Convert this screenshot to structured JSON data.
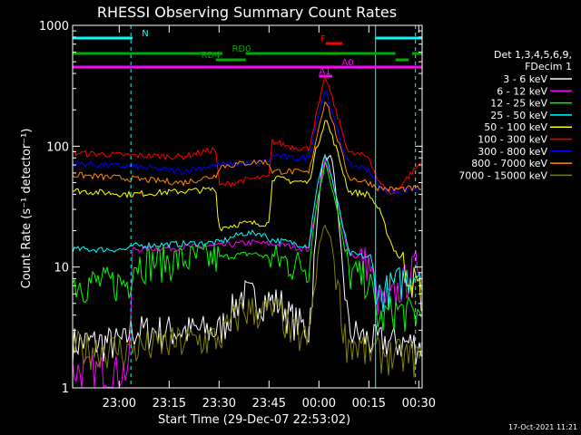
{
  "chart_data": {
    "type": "line",
    "title": "RHESSI Observing Summary Count Rates",
    "xlabel": "Start Time (29-Dec-07 22:53:02)",
    "ylabel": "Count Rate (s⁻¹ detector⁻¹)",
    "yscale": "log",
    "ylim": [
      1,
      1000
    ],
    "xlim_minutes": [
      -7,
      98
    ],
    "x_ticks": [
      {
        "m": 7,
        "label": "23:00"
      },
      {
        "m": 22,
        "label": "23:15"
      },
      {
        "m": 37,
        "label": "23:30"
      },
      {
        "m": 52,
        "label": "23:45"
      },
      {
        "m": 67,
        "label": "00:00"
      },
      {
        "m": 82,
        "label": "00:15"
      },
      {
        "m": 97,
        "label": "00:30"
      }
    ],
    "y_ticks": [
      {
        "v": 1,
        "label": "1"
      },
      {
        "v": 10,
        "label": "10"
      },
      {
        "v": 100,
        "label": "100"
      },
      {
        "v": 1000,
        "label": "1000"
      }
    ],
    "legend_header": [
      "Det 1,3,4,5,6,9,",
      "FDecim 1"
    ],
    "series": [
      {
        "name": "3 - 6 keV",
        "color": "#ffffff",
        "points": [
          [
            -7,
            2.4
          ],
          [
            9,
            2.4
          ],
          [
            10,
            3
          ],
          [
            18,
            3
          ],
          [
            30,
            3
          ],
          [
            37,
            3
          ],
          [
            44,
            6
          ],
          [
            56,
            5
          ],
          [
            58,
            4
          ],
          [
            64,
            3
          ],
          [
            68,
            80
          ],
          [
            71,
            80
          ],
          [
            76,
            3
          ],
          [
            82,
            2.5
          ],
          [
            98,
            2.3
          ]
        ]
      },
      {
        "name": "6 - 12 keV",
        "color": "#ff00ff",
        "points": [
          [
            -7,
            1.4
          ],
          [
            10,
            1.4
          ],
          [
            11,
            14
          ],
          [
            37,
            15
          ],
          [
            47,
            16
          ],
          [
            58,
            15
          ],
          [
            64,
            14
          ],
          [
            66,
            30
          ],
          [
            69,
            80
          ],
          [
            72,
            40
          ],
          [
            76,
            13
          ],
          [
            82,
            11
          ],
          [
            85,
            5
          ],
          [
            89,
            5.6
          ],
          [
            98,
            12
          ]
        ]
      },
      {
        "name": "12 - 25 keV",
        "color": "#00ff00",
        "points": [
          [
            -7,
            7.5
          ],
          [
            10,
            7.5
          ],
          [
            11,
            11
          ],
          [
            37,
            12
          ],
          [
            47,
            13
          ],
          [
            58,
            11
          ],
          [
            64,
            10
          ],
          [
            66,
            30
          ],
          [
            69,
            75
          ],
          [
            72,
            35
          ],
          [
            76,
            9
          ],
          [
            82,
            8
          ],
          [
            85,
            3.5
          ],
          [
            89,
            4.5
          ],
          [
            98,
            4
          ]
        ]
      },
      {
        "name": "25 - 50 keV",
        "color": "#00ffff",
        "points": [
          [
            -7,
            14
          ],
          [
            10,
            14
          ],
          [
            11,
            15
          ],
          [
            37,
            16
          ],
          [
            44,
            19
          ],
          [
            50,
            19
          ],
          [
            52,
            17
          ],
          [
            58,
            16
          ],
          [
            64,
            15
          ],
          [
            66,
            40
          ],
          [
            69,
            90
          ],
          [
            72,
            40
          ],
          [
            76,
            13
          ],
          [
            82,
            12
          ],
          [
            85,
            6
          ],
          [
            89,
            7
          ],
          [
            98,
            10
          ]
        ]
      },
      {
        "name": "50 - 100 keV",
        "color": "#ffff00",
        "points": [
          [
            -7,
            43
          ],
          [
            10,
            40
          ],
          [
            36,
            44
          ],
          [
            37,
            21
          ],
          [
            44,
            23
          ],
          [
            52,
            23
          ],
          [
            53,
            55
          ],
          [
            58,
            52
          ],
          [
            64,
            50
          ],
          [
            66,
            90
          ],
          [
            69,
            170
          ],
          [
            72,
            100
          ],
          [
            76,
            42
          ],
          [
            82,
            40
          ],
          [
            85,
            30
          ],
          [
            89,
            15
          ],
          [
            98,
            6
          ]
        ]
      },
      {
        "name": "100 - 300 keV",
        "color": "#ff0000",
        "points": [
          [
            -7,
            88
          ],
          [
            10,
            84
          ],
          [
            26,
            82
          ],
          [
            36,
            95
          ],
          [
            37,
            47
          ],
          [
            44,
            52
          ],
          [
            50,
            55
          ],
          [
            52,
            55
          ],
          [
            53,
            110
          ],
          [
            58,
            100
          ],
          [
            64,
            95
          ],
          [
            66,
            170
          ],
          [
            69,
            380
          ],
          [
            72,
            200
          ],
          [
            76,
            88
          ],
          [
            82,
            82
          ],
          [
            85,
            50
          ],
          [
            89,
            40
          ],
          [
            98,
            75
          ]
        ]
      },
      {
        "name": "300 - 800 keV",
        "color": "#0000ff",
        "points": [
          [
            -7,
            72
          ],
          [
            10,
            68
          ],
          [
            26,
            62
          ],
          [
            36,
            70
          ],
          [
            37,
            70
          ],
          [
            44,
            72
          ],
          [
            52,
            75
          ],
          [
            53,
            85
          ],
          [
            58,
            80
          ],
          [
            64,
            80
          ],
          [
            66,
            150
          ],
          [
            69,
            300
          ],
          [
            72,
            150
          ],
          [
            76,
            70
          ],
          [
            82,
            65
          ],
          [
            85,
            45
          ],
          [
            89,
            42
          ],
          [
            98,
            45
          ]
        ]
      },
      {
        "name": "800 - 7000 keV",
        "color": "#ff8800",
        "points": [
          [
            -7,
            58
          ],
          [
            10,
            54
          ],
          [
            26,
            50
          ],
          [
            36,
            57
          ],
          [
            37,
            68
          ],
          [
            44,
            72
          ],
          [
            50,
            75
          ],
          [
            52,
            72
          ],
          [
            53,
            62
          ],
          [
            58,
            62
          ],
          [
            64,
            60
          ],
          [
            66,
            110
          ],
          [
            69,
            250
          ],
          [
            72,
            130
          ],
          [
            76,
            55
          ],
          [
            82,
            50
          ],
          [
            85,
            45
          ],
          [
            89,
            44
          ],
          [
            98,
            45
          ]
        ]
      },
      {
        "name": "7000 - 15000 keV",
        "color": "#808000",
        "points": [
          [
            -7,
            2.2
          ],
          [
            10,
            2.1
          ],
          [
            18,
            2.3
          ],
          [
            30,
            2.5
          ],
          [
            37,
            2.6
          ],
          [
            44,
            4.5
          ],
          [
            56,
            4.2
          ],
          [
            58,
            3
          ],
          [
            64,
            2.5
          ],
          [
            67,
            15
          ],
          [
            69,
            23
          ],
          [
            71,
            15
          ],
          [
            75,
            2.5
          ],
          [
            82,
            2
          ],
          [
            98,
            1.8
          ]
        ]
      }
    ],
    "flag_bars": [
      {
        "label": "N",
        "color": "#00ffff",
        "segments": [
          [
            -7,
            11
          ],
          [
            84,
            98
          ]
        ]
      },
      {
        "label": "RD0",
        "color": "#00aa00",
        "segments": [
          [
            -7,
            38
          ],
          [
            45,
            90
          ],
          [
            95,
            98
          ]
        ]
      },
      {
        "label": "RD4",
        "color": "#00aa00",
        "segments": [
          [
            36,
            45
          ],
          [
            90,
            94
          ]
        ]
      },
      {
        "label": "F",
        "color": "#ff0000",
        "segments": [
          [
            69,
            74
          ]
        ]
      },
      {
        "label": "A0",
        "color": "#ff00ff",
        "segments": [
          [
            -7,
            98
          ]
        ]
      },
      {
        "label": "A1",
        "color": "#ff00ff",
        "segments": [
          [
            67,
            71
          ]
        ]
      }
    ],
    "markers": [
      {
        "m": 10.5,
        "color": "#00ffff",
        "style": "dashed"
      },
      {
        "m": 84,
        "color": "#00ffff",
        "style": "solid"
      },
      {
        "m": 96,
        "color": "#00ffff",
        "style": "dashed"
      }
    ]
  },
  "footer": {
    "timestamp": "17-Oct-2021 11:21"
  }
}
